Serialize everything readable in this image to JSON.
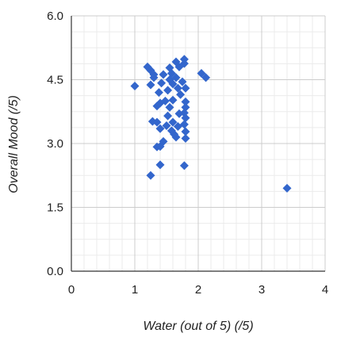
{
  "chart_data": {
    "type": "scatter",
    "title": "",
    "xlabel": "Water (out of 5) (/5)",
    "ylabel": "Overall Mood (/5)",
    "xlim": [
      0,
      4
    ],
    "ylim": [
      0,
      6
    ],
    "x_ticks": [
      "0",
      "1",
      "2",
      "3",
      "4"
    ],
    "y_ticks": [
      "0.0",
      "1.5",
      "3.0",
      "4.5",
      "6.0"
    ],
    "x_tick_values": [
      0,
      1,
      2,
      3,
      4
    ],
    "y_tick_values": [
      0,
      1.5,
      3,
      4.5,
      6
    ],
    "grid": true,
    "legend": "none",
    "marker": "diamond",
    "colors": {
      "series": "#3366cc",
      "major_grid": "#cccccc",
      "minor_grid": "#ebebeb",
      "axis_line": "#333333"
    },
    "series": [
      {
        "points": [
          [
            1.0,
            4.35
          ],
          [
            1.2,
            4.8
          ],
          [
            1.25,
            4.72
          ],
          [
            1.3,
            4.62
          ],
          [
            1.25,
            4.38
          ],
          [
            1.3,
            4.55
          ],
          [
            1.35,
            3.88
          ],
          [
            1.4,
            3.95
          ],
          [
            1.38,
            4.2
          ],
          [
            1.42,
            4.42
          ],
          [
            1.45,
            4.62
          ],
          [
            1.48,
            4.0
          ],
          [
            1.28,
            3.52
          ],
          [
            1.35,
            3.5
          ],
          [
            1.4,
            3.35
          ],
          [
            1.45,
            3.05
          ],
          [
            1.35,
            2.92
          ],
          [
            1.4,
            2.93
          ],
          [
            1.4,
            2.5
          ],
          [
            1.25,
            2.25
          ],
          [
            1.5,
            3.42
          ],
          [
            1.52,
            3.65
          ],
          [
            1.55,
            3.85
          ],
          [
            1.52,
            4.25
          ],
          [
            1.55,
            4.5
          ],
          [
            1.58,
            4.65
          ],
          [
            1.55,
            4.78
          ],
          [
            1.6,
            4.4
          ],
          [
            1.6,
            4.02
          ],
          [
            1.62,
            3.22
          ],
          [
            1.6,
            3.5
          ],
          [
            1.58,
            3.3
          ],
          [
            1.65,
            4.92
          ],
          [
            1.65,
            4.55
          ],
          [
            1.68,
            4.3
          ],
          [
            1.7,
            4.8
          ],
          [
            1.68,
            3.4
          ],
          [
            1.65,
            3.15
          ],
          [
            1.75,
            4.45
          ],
          [
            1.78,
            4.98
          ],
          [
            1.78,
            4.88
          ],
          [
            1.8,
            4.3
          ],
          [
            1.8,
            3.98
          ],
          [
            1.8,
            3.85
          ],
          [
            1.78,
            3.72
          ],
          [
            1.8,
            3.6
          ],
          [
            1.78,
            3.45
          ],
          [
            1.8,
            3.28
          ],
          [
            1.8,
            3.12
          ],
          [
            1.78,
            2.48
          ],
          [
            1.7,
            3.7
          ],
          [
            1.72,
            4.15
          ],
          [
            2.05,
            4.65
          ],
          [
            2.12,
            4.55
          ],
          [
            3.4,
            1.95
          ]
        ]
      }
    ]
  }
}
